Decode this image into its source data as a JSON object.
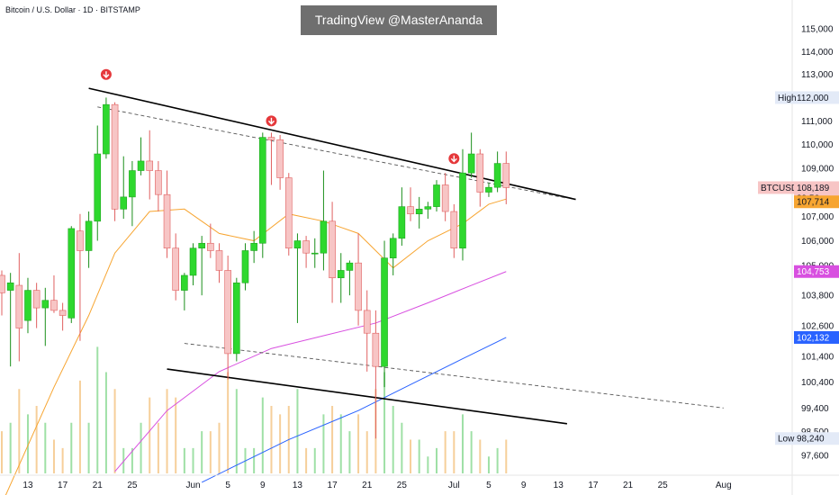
{
  "header": {
    "symbol_line": "Bitcoin / U.S. Dollar · 1D · BITSTAMP",
    "watermark": "TradingView @MasterAnanda"
  },
  "chart_data": {
    "type": "candlestick",
    "symbol": "BTCUSD",
    "interval": "1D",
    "exchange": "BITSTAMP",
    "y_axis": {
      "ticks": [
        115000,
        114000,
        113000,
        112000,
        111000,
        110000,
        109000,
        108000,
        107000,
        106000,
        105000,
        103800,
        102600,
        101400,
        100400,
        99400,
        98500,
        97600
      ],
      "ylim": [
        97200,
        115400
      ],
      "scale": "log"
    },
    "x_axis": {
      "tick_labels": [
        "13",
        "17",
        "21",
        "25",
        "Jun",
        "5",
        "9",
        "13",
        "17",
        "21",
        "25",
        "Jul",
        "5",
        "9",
        "13",
        "17",
        "21",
        "25",
        "Aug"
      ],
      "first_date": "2025-05-12",
      "last_date": "2025-08-01"
    },
    "price_labels": {
      "high": {
        "label": "High",
        "value": "112,000"
      },
      "current": {
        "label": "BTCUSD",
        "value": "108,189",
        "countdown": "39:56"
      },
      "ma_short": {
        "value": "107,714",
        "color": "#f7a531"
      },
      "ma_mid": {
        "value": "104,753",
        "color": "#d84fe0"
      },
      "ma_long": {
        "value": "102,132",
        "color": "#2962ff"
      },
      "low": {
        "label": "Low",
        "value": "98,240"
      }
    },
    "candles": [
      {
        "date": "2025-05-10",
        "o": 104600,
        "h": 104800,
        "l": 103000,
        "c": 103900
      },
      {
        "date": "2025-05-11",
        "o": 104000,
        "h": 104700,
        "l": 101000,
        "c": 104300
      },
      {
        "date": "2025-05-12",
        "o": 104200,
        "h": 105500,
        "l": 101200,
        "c": 102500
      },
      {
        "date": "2025-05-13",
        "o": 102800,
        "h": 104500,
        "l": 102300,
        "c": 104000
      },
      {
        "date": "2025-05-14",
        "o": 104000,
        "h": 104300,
        "l": 102500,
        "c": 103300
      },
      {
        "date": "2025-05-15",
        "o": 103300,
        "h": 104100,
        "l": 101800,
        "c": 103600
      },
      {
        "date": "2025-05-16",
        "o": 103600,
        "h": 104600,
        "l": 103100,
        "c": 103200
      },
      {
        "date": "2025-05-17",
        "o": 103200,
        "h": 103500,
        "l": 102400,
        "c": 103000
      },
      {
        "date": "2025-05-18",
        "o": 102900,
        "h": 106600,
        "l": 102700,
        "c": 106500
      },
      {
        "date": "2025-05-19",
        "o": 106400,
        "h": 107100,
        "l": 102000,
        "c": 105600
      },
      {
        "date": "2025-05-20",
        "o": 105600,
        "h": 107200,
        "l": 104900,
        "c": 106800
      },
      {
        "date": "2025-05-21",
        "o": 106800,
        "h": 110800,
        "l": 106000,
        "c": 109600
      },
      {
        "date": "2025-05-22",
        "o": 109600,
        "h": 112000,
        "l": 109400,
        "c": 111700
      },
      {
        "date": "2025-05-23",
        "o": 111700,
        "h": 111800,
        "l": 106800,
        "c": 107300
      },
      {
        "date": "2025-05-24",
        "o": 107300,
        "h": 109500,
        "l": 106900,
        "c": 107800
      },
      {
        "date": "2025-05-25",
        "o": 107800,
        "h": 109300,
        "l": 106600,
        "c": 108900
      },
      {
        "date": "2025-05-26",
        "o": 108900,
        "h": 110300,
        "l": 108700,
        "c": 109300
      },
      {
        "date": "2025-05-27",
        "o": 109300,
        "h": 110600,
        "l": 107700,
        "c": 108900
      },
      {
        "date": "2025-05-28",
        "o": 108900,
        "h": 109300,
        "l": 107200,
        "c": 107900
      },
      {
        "date": "2025-05-29",
        "o": 107900,
        "h": 108900,
        "l": 105300,
        "c": 105700
      },
      {
        "date": "2025-05-30",
        "o": 105700,
        "h": 106300,
        "l": 103600,
        "c": 104000
      },
      {
        "date": "2025-05-31",
        "o": 104000,
        "h": 104700,
        "l": 103200,
        "c": 104600
      },
      {
        "date": "2025-06-01",
        "o": 104600,
        "h": 105900,
        "l": 104200,
        "c": 105700
      },
      {
        "date": "2025-06-02",
        "o": 105700,
        "h": 106200,
        "l": 103800,
        "c": 105900
      },
      {
        "date": "2025-06-03",
        "o": 105900,
        "h": 106700,
        "l": 105300,
        "c": 105600
      },
      {
        "date": "2025-06-04",
        "o": 105600,
        "h": 105900,
        "l": 104300,
        "c": 104800
      },
      {
        "date": "2025-06-05",
        "o": 104800,
        "h": 105400,
        "l": 100500,
        "c": 101500
      },
      {
        "date": "2025-06-06",
        "o": 101500,
        "h": 104500,
        "l": 101200,
        "c": 104300
      },
      {
        "date": "2025-06-07",
        "o": 104300,
        "h": 105900,
        "l": 104000,
        "c": 105600
      },
      {
        "date": "2025-06-08",
        "o": 105600,
        "h": 106400,
        "l": 105100,
        "c": 105900
      },
      {
        "date": "2025-06-09",
        "o": 105900,
        "h": 110500,
        "l": 105300,
        "c": 110300
      },
      {
        "date": "2025-06-10",
        "o": 110300,
        "h": 110500,
        "l": 108300,
        "c": 110200
      },
      {
        "date": "2025-06-11",
        "o": 110200,
        "h": 110400,
        "l": 108100,
        "c": 108600
      },
      {
        "date": "2025-06-12",
        "o": 108600,
        "h": 108800,
        "l": 105400,
        "c": 105700
      },
      {
        "date": "2025-06-13",
        "o": 105700,
        "h": 106300,
        "l": 102700,
        "c": 106000
      },
      {
        "date": "2025-06-14",
        "o": 106000,
        "h": 106200,
        "l": 104900,
        "c": 105500
      },
      {
        "date": "2025-06-15",
        "o": 105500,
        "h": 106100,
        "l": 104900,
        "c": 105500
      },
      {
        "date": "2025-06-16",
        "o": 105500,
        "h": 108900,
        "l": 104800,
        "c": 106800
      },
      {
        "date": "2025-06-17",
        "o": 106800,
        "h": 107600,
        "l": 103500,
        "c": 104500
      },
      {
        "date": "2025-06-18",
        "o": 104500,
        "h": 105500,
        "l": 103500,
        "c": 104800
      },
      {
        "date": "2025-06-19",
        "o": 104800,
        "h": 105200,
        "l": 103800,
        "c": 105100
      },
      {
        "date": "2025-06-20",
        "o": 105100,
        "h": 106300,
        "l": 102600,
        "c": 103200
      },
      {
        "date": "2025-06-21",
        "o": 103200,
        "h": 104000,
        "l": 100800,
        "c": 102300
      },
      {
        "date": "2025-06-22",
        "o": 102300,
        "h": 103200,
        "l": 98240,
        "c": 101000
      },
      {
        "date": "2025-06-23",
        "o": 101000,
        "h": 106000,
        "l": 100200,
        "c": 105300
      },
      {
        "date": "2025-06-24",
        "o": 105300,
        "h": 106300,
        "l": 104600,
        "c": 106100
      },
      {
        "date": "2025-06-25",
        "o": 106100,
        "h": 108200,
        "l": 105800,
        "c": 107400
      },
      {
        "date": "2025-06-26",
        "o": 107400,
        "h": 108200,
        "l": 106800,
        "c": 107100
      },
      {
        "date": "2025-06-27",
        "o": 107100,
        "h": 107800,
        "l": 106500,
        "c": 107300
      },
      {
        "date": "2025-06-28",
        "o": 107300,
        "h": 107600,
        "l": 106900,
        "c": 107400
      },
      {
        "date": "2025-06-29",
        "o": 107400,
        "h": 108500,
        "l": 107200,
        "c": 108300
      },
      {
        "date": "2025-06-30",
        "o": 108300,
        "h": 108800,
        "l": 106800,
        "c": 107200
      },
      {
        "date": "2025-07-01",
        "o": 107200,
        "h": 107500,
        "l": 105300,
        "c": 105700
      },
      {
        "date": "2025-07-02",
        "o": 105700,
        "h": 109800,
        "l": 105200,
        "c": 108800
      },
      {
        "date": "2025-07-03",
        "o": 108800,
        "h": 110500,
        "l": 108600,
        "c": 109600
      },
      {
        "date": "2025-07-04",
        "o": 109600,
        "h": 109800,
        "l": 107400,
        "c": 108000
      },
      {
        "date": "2025-07-05",
        "o": 108000,
        "h": 108400,
        "l": 107800,
        "c": 108200
      },
      {
        "date": "2025-07-06",
        "o": 108200,
        "h": 109700,
        "l": 108000,
        "c": 109200
      },
      {
        "date": "2025-07-07",
        "o": 109200,
        "h": 109700,
        "l": 107500,
        "c": 108189
      }
    ],
    "moving_averages": [
      {
        "color": "#f7a531",
        "points": [
          [
            "2025-05-10",
            95800
          ],
          [
            "2025-05-16",
            100200
          ],
          [
            "2025-05-20",
            103000
          ],
          [
            "2025-05-23",
            105500
          ],
          [
            "2025-05-27",
            107200
          ],
          [
            "2025-05-31",
            107300
          ],
          [
            "2025-06-04",
            106300
          ],
          [
            "2025-06-08",
            106000
          ],
          [
            "2025-06-12",
            107100
          ],
          [
            "2025-06-16",
            106800
          ],
          [
            "2025-06-20",
            106300
          ],
          [
            "2025-06-24",
            104900
          ],
          [
            "2025-06-28",
            106000
          ],
          [
            "2025-07-02",
            106700
          ],
          [
            "2025-07-05",
            107500
          ],
          [
            "2025-07-07",
            107714
          ]
        ]
      },
      {
        "color": "#d84fe0",
        "points": [
          [
            "2025-05-23",
            97000
          ],
          [
            "2025-05-29",
            99300
          ],
          [
            "2025-06-04",
            100800
          ],
          [
            "2025-06-10",
            101700
          ],
          [
            "2025-06-16",
            102200
          ],
          [
            "2025-06-22",
            102700
          ],
          [
            "2025-06-28",
            103500
          ],
          [
            "2025-07-03",
            104200
          ],
          [
            "2025-07-07",
            104753
          ]
        ]
      },
      {
        "color": "#2962ff",
        "points": [
          [
            "2025-06-02",
            96600
          ],
          [
            "2025-06-12",
            98200
          ],
          [
            "2025-06-20",
            99300
          ],
          [
            "2025-06-26",
            100300
          ],
          [
            "2025-07-02",
            101300
          ],
          [
            "2025-07-07",
            102132
          ]
        ]
      }
    ],
    "trendlines": [
      {
        "style": "solid",
        "from": [
          "2025-05-20",
          112400
        ],
        "to": [
          "2025-07-15",
          107700
        ]
      },
      {
        "style": "dashed",
        "from": [
          "2025-05-21",
          111600
        ],
        "to": [
          "2025-07-14",
          107750
        ]
      },
      {
        "style": "dashed",
        "from": [
          "2025-05-31",
          101900
        ],
        "to": [
          "2025-08-01",
          99400
        ]
      },
      {
        "style": "solid",
        "from": [
          "2025-05-29",
          100900
        ],
        "to": [
          "2025-07-14",
          98800
        ]
      }
    ],
    "markers": [
      {
        "type": "down-arrow",
        "date": "2025-05-22",
        "price": 113000
      },
      {
        "type": "down-arrow",
        "date": "2025-06-10",
        "price": 111000
      },
      {
        "type": "down-arrow",
        "date": "2025-07-01",
        "price": 109400
      }
    ],
    "volume": [
      {
        "date": "2025-05-10",
        "v": 0.5,
        "up": false
      },
      {
        "date": "2025-05-11",
        "v": 0.6,
        "up": true
      },
      {
        "date": "2025-05-12",
        "v": 1.0,
        "up": false
      },
      {
        "date": "2025-05-13",
        "v": 0.7,
        "up": true
      },
      {
        "date": "2025-05-14",
        "v": 0.8,
        "up": false
      },
      {
        "date": "2025-05-15",
        "v": 0.6,
        "up": true
      },
      {
        "date": "2025-05-16",
        "v": 0.4,
        "up": false
      },
      {
        "date": "2025-05-17",
        "v": 0.3,
        "up": false
      },
      {
        "date": "2025-05-18",
        "v": 0.6,
        "up": true
      },
      {
        "date": "2025-05-19",
        "v": 1.1,
        "up": false
      },
      {
        "date": "2025-05-20",
        "v": 0.6,
        "up": true
      },
      {
        "date": "2025-05-21",
        "v": 1.5,
        "up": true
      },
      {
        "date": "2025-05-22",
        "v": 1.2,
        "up": true
      },
      {
        "date": "2025-05-23",
        "v": 1.0,
        "up": false
      },
      {
        "date": "2025-05-24",
        "v": 0.3,
        "up": true
      },
      {
        "date": "2025-05-25",
        "v": 0.3,
        "up": true
      },
      {
        "date": "2025-05-26",
        "v": 0.6,
        "up": true
      },
      {
        "date": "2025-05-27",
        "v": 0.9,
        "up": false
      },
      {
        "date": "2025-05-28",
        "v": 0.6,
        "up": false
      },
      {
        "date": "2025-05-29",
        "v": 1.0,
        "up": false
      },
      {
        "date": "2025-05-30",
        "v": 0.9,
        "up": false
      },
      {
        "date": "2025-05-31",
        "v": 0.3,
        "up": true
      },
      {
        "date": "2025-06-01",
        "v": 0.3,
        "up": true
      },
      {
        "date": "2025-06-02",
        "v": 0.5,
        "up": true
      },
      {
        "date": "2025-06-03",
        "v": 0.5,
        "up": false
      },
      {
        "date": "2025-06-04",
        "v": 0.6,
        "up": false
      },
      {
        "date": "2025-06-05",
        "v": 1.2,
        "up": false
      },
      {
        "date": "2025-06-06",
        "v": 1.0,
        "up": true
      },
      {
        "date": "2025-06-07",
        "v": 0.3,
        "up": true
      },
      {
        "date": "2025-06-08",
        "v": 0.3,
        "up": true
      },
      {
        "date": "2025-06-09",
        "v": 0.9,
        "up": true
      },
      {
        "date": "2025-06-10",
        "v": 0.8,
        "up": false
      },
      {
        "date": "2025-06-11",
        "v": 0.7,
        "up": false
      },
      {
        "date": "2025-06-12",
        "v": 0.8,
        "up": false
      },
      {
        "date": "2025-06-13",
        "v": 1.0,
        "up": true
      },
      {
        "date": "2025-06-14",
        "v": 0.3,
        "up": false
      },
      {
        "date": "2025-06-15",
        "v": 0.3,
        "up": true
      },
      {
        "date": "2025-06-16",
        "v": 0.7,
        "up": true
      },
      {
        "date": "2025-06-17",
        "v": 0.8,
        "up": false
      },
      {
        "date": "2025-06-18",
        "v": 0.7,
        "up": true
      },
      {
        "date": "2025-06-19",
        "v": 0.5,
        "up": true
      },
      {
        "date": "2025-06-20",
        "v": 0.7,
        "up": false
      },
      {
        "date": "2025-06-21",
        "v": 0.5,
        "up": false
      },
      {
        "date": "2025-06-22",
        "v": 1.0,
        "up": false
      },
      {
        "date": "2025-06-23",
        "v": 1.2,
        "up": true
      },
      {
        "date": "2025-06-24",
        "v": 0.8,
        "up": true
      },
      {
        "date": "2025-06-25",
        "v": 0.6,
        "up": true
      },
      {
        "date": "2025-06-26",
        "v": 0.4,
        "up": false
      },
      {
        "date": "2025-06-27",
        "v": 0.4,
        "up": true
      },
      {
        "date": "2025-06-28",
        "v": 0.2,
        "up": true
      },
      {
        "date": "2025-06-29",
        "v": 0.3,
        "up": true
      },
      {
        "date": "2025-06-30",
        "v": 0.5,
        "up": false
      },
      {
        "date": "2025-07-01",
        "v": 0.5,
        "up": false
      },
      {
        "date": "2025-07-02",
        "v": 0.7,
        "up": true
      },
      {
        "date": "2025-07-03",
        "v": 0.5,
        "up": true
      },
      {
        "date": "2025-07-04",
        "v": 0.4,
        "up": false
      },
      {
        "date": "2025-07-05",
        "v": 0.2,
        "up": true
      },
      {
        "date": "2025-07-06",
        "v": 0.3,
        "up": true
      },
      {
        "date": "2025-07-07",
        "v": 0.4,
        "up": false
      }
    ]
  },
  "colors": {
    "up": "#2ed82e",
    "down": "#f7c5c5",
    "down_border": "#e06060",
    "volume_up": "#9fe0a6",
    "volume_down": "#f6cf9a",
    "trendline": "#000000",
    "marker": "#e5383b"
  }
}
